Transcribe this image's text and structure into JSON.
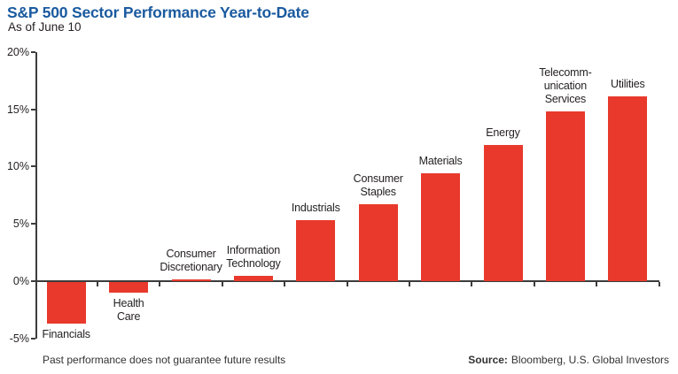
{
  "header": {
    "title": "S&P 500 Sector Performance Year-to-Date",
    "subtitle": "As of June 10"
  },
  "footer": {
    "disclaimer": "Past performance does not guarantee future results",
    "source_label": "Source:",
    "source_text": "Bloomberg, U.S. Global Investors"
  },
  "colors": {
    "bar": "#e8392c",
    "title_blue": "#1a5a9f",
    "axis": "#3c3c3c",
    "text": "#231f20"
  },
  "chart_data": {
    "type": "bar",
    "title": "S&P 500 Sector Performance Year-to-Date",
    "subtitle": "As of June 10",
    "categories": [
      "Financials",
      "Health Care",
      "Consumer Discretionary",
      "Information Technology",
      "Industrials",
      "Consumer Staples",
      "Materials",
      "Energy",
      "Telecommunication Services",
      "Utilities"
    ],
    "category_label_lines": [
      [
        "Financials"
      ],
      [
        "Health",
        "Care"
      ],
      [
        "Consumer",
        "Discretionary"
      ],
      [
        "Information",
        "Technology"
      ],
      [
        "Industrials"
      ],
      [
        "Consumer",
        "Staples"
      ],
      [
        "Materials"
      ],
      [
        "Energy"
      ],
      [
        "Telecomm-",
        "unication",
        "Services"
      ],
      [
        "Utilities"
      ]
    ],
    "values": [
      -3.6,
      -0.9,
      0.15,
      0.5,
      5.3,
      6.7,
      9.4,
      11.9,
      14.8,
      16.1
    ],
    "unit": "%",
    "ylim": [
      -5,
      20
    ],
    "yticks": [
      20,
      15,
      10,
      5,
      0,
      -5
    ],
    "ytick_labels": [
      "20%",
      "15%",
      "10%",
      "5%",
      "0%",
      "-5%"
    ],
    "grid": false,
    "legend": null,
    "bar_color": "#e8392c",
    "xlabel": "",
    "ylabel": ""
  }
}
